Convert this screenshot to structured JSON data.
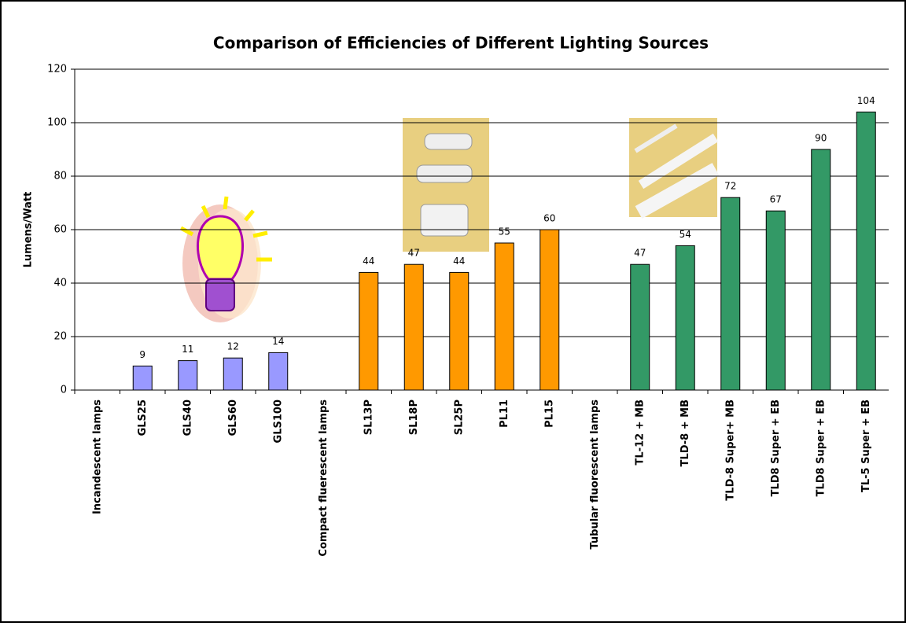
{
  "chart_data": {
    "type": "bar",
    "title": "Comparison of Efficiencies of Different Lighting Sources",
    "y_label": "Lumens/Watt",
    "categories": [
      "Incandescent lamps",
      "GLS25",
      "GLS40",
      "GLS60",
      "GLS100",
      "Compact fluerescent lamps",
      "SL13P",
      "SL18P",
      "SL25P",
      "PL11",
      "PL15",
      "Tubular fluorescent lamps",
      "TL-12 + MB",
      "TLD-8 + MB",
      "TLD-8 Super+ MB",
      "TLD8 Super + EB",
      "TLD8 Super + EB",
      "TL-5 Super + EB"
    ],
    "values": [
      null,
      9,
      11,
      12,
      14,
      null,
      44,
      47,
      44,
      55,
      60,
      null,
      47,
      54,
      72,
      67,
      90,
      104
    ],
    "colors": [
      null,
      "#9999ff",
      "#9999ff",
      "#9999ff",
      "#9999ff",
      null,
      "#ff9900",
      "#ff9900",
      "#ff9900",
      "#ff9900",
      "#ff9900",
      null,
      "#339966",
      "#339966",
      "#339966",
      "#339966",
      "#339966",
      "#339966"
    ],
    "ylim": [
      0,
      120
    ],
    "yticks": [
      0,
      20,
      40,
      60,
      80,
      100,
      120
    ],
    "grid": true
  }
}
